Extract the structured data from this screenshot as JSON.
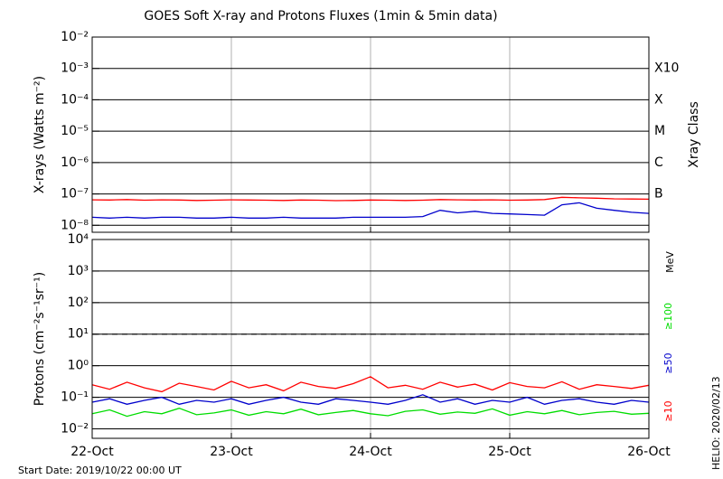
{
  "title": "GOES Soft X-ray and Protons Fluxes   (1min & 5min data)",
  "start_date": "Start Date: 2019/10/22 00:00 UT",
  "helio_date": "HELIO: 2020/02/13",
  "chart_data": [
    {
      "type": "line",
      "log_y": true,
      "grid": true,
      "ylabel": "X-rays (Watts m⁻²)",
      "y2label": "Xray Class",
      "x": [
        0,
        3,
        6,
        9,
        12,
        15,
        18,
        21,
        24,
        27,
        30,
        33,
        36,
        39,
        42,
        45,
        48,
        51,
        54,
        57,
        60,
        63,
        66,
        69,
        72,
        75,
        78,
        81,
        84,
        87,
        90,
        93,
        96
      ],
      "xlim": [
        0,
        96
      ],
      "xticks": [
        0,
        24,
        48,
        72,
        96
      ],
      "ylim": [
        6e-09,
        0.01
      ],
      "yticks": [
        {
          "value": 1e-08,
          "label": "10⁻⁸"
        },
        {
          "value": 1e-07,
          "label": "10⁻⁷"
        },
        {
          "value": 1e-06,
          "label": "10⁻⁶"
        },
        {
          "value": 1e-05,
          "label": "10⁻⁵"
        },
        {
          "value": 0.0001,
          "label": "10⁻⁴"
        },
        {
          "value": 0.001,
          "label": "10⁻³"
        },
        {
          "value": 0.01,
          "label": "10⁻²"
        }
      ],
      "class_labels": [
        {
          "value": 0.001,
          "label": "X10"
        },
        {
          "value": 0.0001,
          "label": "X"
        },
        {
          "value": 1e-05,
          "label": "M"
        },
        {
          "value": 1e-06,
          "label": "C"
        },
        {
          "value": 1e-07,
          "label": "B"
        }
      ],
      "series": [
        {
          "color": "#ff0000",
          "values": [
            6.5e-08,
            6.4e-08,
            6.6e-08,
            6.3e-08,
            6.5e-08,
            6.4e-08,
            6.2e-08,
            6.3e-08,
            6.5e-08,
            6.4e-08,
            6.3e-08,
            6.2e-08,
            6.4e-08,
            6.3e-08,
            6.1e-08,
            6.2e-08,
            6.4e-08,
            6.3e-08,
            6.2e-08,
            6.3e-08,
            6.6e-08,
            6.5e-08,
            6.4e-08,
            6.5e-08,
            6.3e-08,
            6.4e-08,
            6.6e-08,
            7.8e-08,
            7.5e-08,
            7.3e-08,
            7e-08,
            6.9e-08,
            6.8e-08
          ]
        },
        {
          "color": "#0000cc",
          "values": [
            1.8e-08,
            1.7e-08,
            1.8e-08,
            1.7e-08,
            1.8e-08,
            1.8e-08,
            1.7e-08,
            1.7e-08,
            1.8e-08,
            1.7e-08,
            1.7e-08,
            1.8e-08,
            1.7e-08,
            1.7e-08,
            1.7e-08,
            1.8e-08,
            1.8e-08,
            1.8e-08,
            1.8e-08,
            1.9e-08,
            3e-08,
            2.5e-08,
            2.8e-08,
            2.4e-08,
            2.3e-08,
            2.2e-08,
            2.1e-08,
            4.5e-08,
            5.2e-08,
            3.5e-08,
            3e-08,
            2.6e-08,
            2.4e-08
          ]
        }
      ]
    },
    {
      "type": "line",
      "log_y": true,
      "grid": true,
      "ylabel": "Protons (cm⁻²s⁻¹sr⁻¹)",
      "legend_unit": "MeV",
      "threshold": 10,
      "x": [
        0,
        3,
        6,
        9,
        12,
        15,
        18,
        21,
        24,
        27,
        30,
        33,
        36,
        39,
        42,
        45,
        48,
        51,
        54,
        57,
        60,
        63,
        66,
        69,
        72,
        75,
        78,
        81,
        84,
        87,
        90,
        93,
        96
      ],
      "xlim": [
        0,
        96
      ],
      "xticks": [
        {
          "value": 0,
          "label": "22-Oct"
        },
        {
          "value": 24,
          "label": "23-Oct"
        },
        {
          "value": 48,
          "label": "24-Oct"
        },
        {
          "value": 72,
          "label": "25-Oct"
        },
        {
          "value": 96,
          "label": "26-Oct"
        }
      ],
      "ylim": [
        0.005,
        10000.0
      ],
      "yticks": [
        {
          "value": 0.01,
          "label": "10⁻²"
        },
        {
          "value": 0.1,
          "label": "10⁻¹"
        },
        {
          "value": 1,
          "label": "10⁰"
        },
        {
          "value": 10,
          "label": "10¹"
        },
        {
          "value": 100,
          "label": "10²"
        },
        {
          "value": 1000,
          "label": "10³"
        },
        {
          "value": 10000,
          "label": "10⁴"
        }
      ],
      "series": [
        {
          "name": "≥10",
          "color": "#ff0000",
          "values": [
            0.25,
            0.18,
            0.3,
            0.2,
            0.15,
            0.28,
            0.22,
            0.17,
            0.32,
            0.2,
            0.25,
            0.16,
            0.3,
            0.22,
            0.19,
            0.27,
            0.45,
            0.2,
            0.24,
            0.18,
            0.3,
            0.21,
            0.26,
            0.17,
            0.29,
            0.22,
            0.2,
            0.31,
            0.18,
            0.25,
            0.22,
            0.19,
            0.24
          ]
        },
        {
          "name": "≥50",
          "color": "#0000cc",
          "values": [
            0.07,
            0.09,
            0.06,
            0.08,
            0.1,
            0.06,
            0.08,
            0.07,
            0.09,
            0.06,
            0.08,
            0.1,
            0.07,
            0.06,
            0.09,
            0.08,
            0.07,
            0.06,
            0.08,
            0.12,
            0.07,
            0.09,
            0.06,
            0.08,
            0.07,
            0.1,
            0.06,
            0.08,
            0.09,
            0.07,
            0.06,
            0.08,
            0.07
          ]
        },
        {
          "name": "≥100",
          "color": "#00dd00",
          "values": [
            0.03,
            0.04,
            0.025,
            0.035,
            0.03,
            0.045,
            0.028,
            0.032,
            0.04,
            0.027,
            0.035,
            0.03,
            0.042,
            0.028,
            0.033,
            0.038,
            0.03,
            0.026,
            0.036,
            0.04,
            0.029,
            0.034,
            0.031,
            0.043,
            0.027,
            0.035,
            0.03,
            0.038,
            0.028,
            0.033,
            0.036,
            0.029,
            0.031
          ]
        }
      ]
    }
  ]
}
